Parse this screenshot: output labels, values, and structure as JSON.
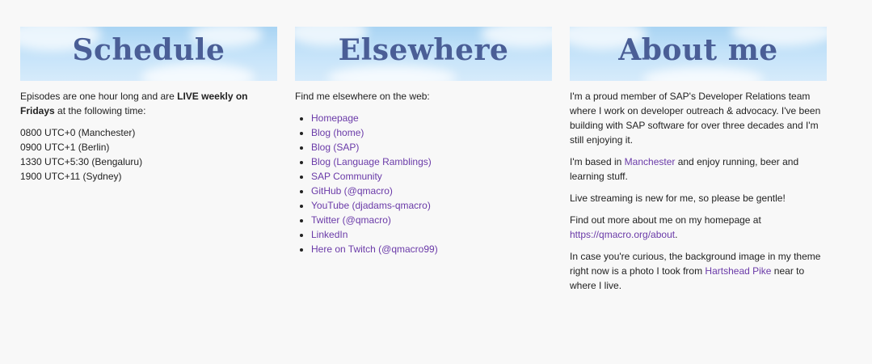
{
  "schedule": {
    "title": "Schedule",
    "intro_before": "Episodes are one hour long and are ",
    "intro_bold": "LIVE weekly on Fridays",
    "intro_after": " at the following time:",
    "times": [
      "0800 UTC+0 (Manchester)",
      "0900 UTC+1 (Berlin)",
      "1330 UTC+5:30 (Bengaluru)",
      "1900 UTC+11 (Sydney)"
    ]
  },
  "elsewhere": {
    "title": "Elsewhere",
    "intro": "Find me elsewhere on the web:",
    "links": [
      "Homepage",
      "Blog (home)",
      "Blog (SAP)",
      "Blog (Language Ramblings)",
      "SAP Community",
      "GitHub (@qmacro)",
      "YouTube (djadams-qmacro)",
      "Twitter (@qmacro)",
      "LinkedIn",
      "Here on Twitch (@qmacro99)"
    ]
  },
  "about": {
    "title": "About me",
    "p1": "I'm a proud member of SAP's Developer Relations team where I work on developer outreach & advocacy. I've been building with SAP software for over three decades and I'm still enjoying it.",
    "p2_before": "I'm based in ",
    "p2_link": "Manchester",
    "p2_after": " and enjoy running, beer and learning stuff.",
    "p3": "Live streaming is new for me, so please be gentle!",
    "p4_before": "Find out more about me on my homepage at ",
    "p4_link": "https://qmacro.org/about",
    "p4_after": ".",
    "p5_before": "In case you're curious, the background image in my theme right now is a photo I took from ",
    "p5_link": "Hartshead Pike",
    "p5_after": " near to where I live."
  },
  "colors": {
    "link": "#6a3aa8",
    "banner_text": "#4a5e96",
    "background": "#f8f8f8"
  }
}
